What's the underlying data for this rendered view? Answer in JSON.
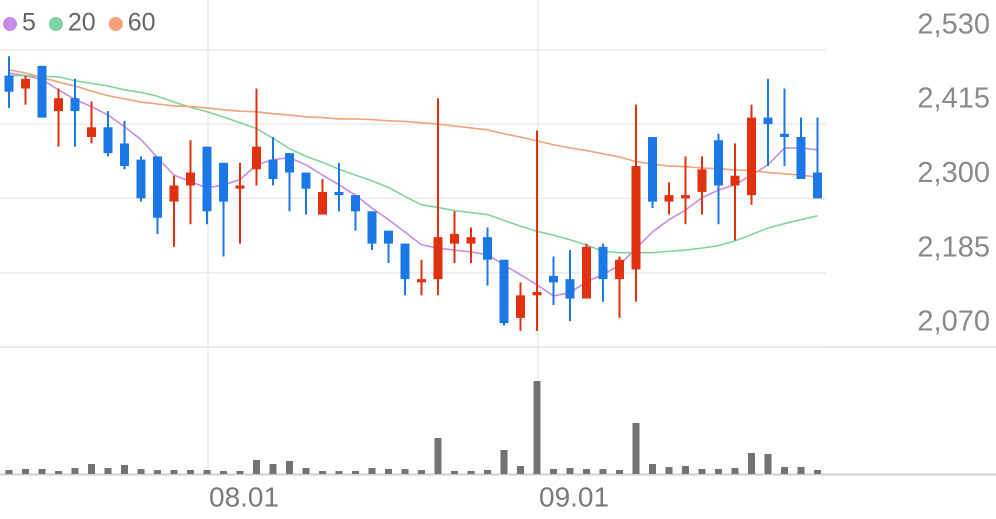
{
  "chart_data": {
    "type": "candlestick",
    "categories": [
      null,
      null,
      null,
      null,
      null,
      null,
      null,
      null,
      null,
      null,
      null,
      null,
      "08.01",
      null,
      null,
      null,
      null,
      null,
      null,
      null,
      null,
      null,
      null,
      null,
      null,
      null,
      null,
      null,
      null,
      null,
      null,
      null,
      "09.01",
      null,
      null,
      null,
      null,
      null,
      null,
      null,
      null,
      null,
      null,
      null,
      null,
      null,
      null,
      null,
      null,
      null
    ],
    "open": [
      2490,
      2470,
      2505,
      2435,
      2455,
      2395,
      2410,
      2385,
      2360,
      2365,
      2295,
      2320,
      2380,
      2355,
      2315,
      2345,
      2360,
      2370,
      2340,
      2275,
      2310,
      2305,
      2280,
      2250,
      2230,
      2170,
      2175,
      2230,
      2230,
      2240,
      2205,
      2115,
      2150,
      2180,
      2175,
      2145,
      2225,
      2175,
      2190,
      2395,
      2295,
      2300,
      2310,
      2390,
      2320,
      2305,
      2425,
      2400,
      2395,
      2340
    ],
    "high": [
      2520,
      2490,
      2505,
      2470,
      2485,
      2450,
      2435,
      2420,
      2365,
      2365,
      2335,
      2390,
      2380,
      2355,
      2355,
      2470,
      2395,
      2370,
      2340,
      2330,
      2355,
      2305,
      2280,
      2250,
      2230,
      2205,
      2455,
      2280,
      2255,
      2255,
      2205,
      2170,
      2405,
      2210,
      2220,
      2230,
      2230,
      2210,
      2445,
      2395,
      2325,
      2365,
      2365,
      2400,
      2385,
      2445,
      2485,
      2470,
      2425,
      2425
    ],
    "low": [
      2440,
      2445,
      2425,
      2380,
      2380,
      2385,
      2365,
      2345,
      2295,
      2245,
      2225,
      2260,
      2260,
      2210,
      2230,
      2320,
      2320,
      2280,
      2275,
      2275,
      2280,
      2250,
      2220,
      2200,
      2150,
      2150,
      2150,
      2200,
      2200,
      2165,
      2103,
      2095,
      2095,
      2135,
      2110,
      2145,
      2140,
      2115,
      2140,
      2285,
      2275,
      2260,
      2275,
      2260,
      2235,
      2290,
      2350,
      2350,
      2330,
      2300
    ],
    "close": [
      2465,
      2485,
      2425,
      2455,
      2435,
      2410,
      2370,
      2350,
      2300,
      2270,
      2320,
      2340,
      2280,
      2295,
      2320,
      2380,
      2330,
      2340,
      2315,
      2310,
      2305,
      2280,
      2230,
      2230,
      2175,
      2175,
      2240,
      2245,
      2240,
      2205,
      2107,
      2150,
      2155,
      2170,
      2145,
      2225,
      2175,
      2205,
      2350,
      2295,
      2305,
      2305,
      2345,
      2320,
      2335,
      2425,
      2415,
      2395,
      2330,
      2300
    ],
    "up_color": "#e0320f",
    "down_color": "#1c78e5",
    "series": [
      {
        "name": "5",
        "color": "#c98be3",
        "values": [
          2494,
          2490,
          2484,
          2468,
          2453,
          2442,
          2429,
          2411,
          2391,
          2363,
          2336,
          2326,
          2316,
          2321,
          2329,
          2352,
          2360,
          2363,
          2352,
          2336,
          2321,
          2305,
          2285,
          2267,
          2248,
          2228,
          2223,
          2220,
          2217,
          2213,
          2197,
          2182,
          2166,
          2149,
          2154,
          2171,
          2182,
          2197,
          2223,
          2248,
          2267,
          2282,
          2301,
          2313,
          2321,
          2336,
          2352,
          2378,
          2378,
          2375
        ]
      },
      {
        "name": "20",
        "color": "#7fd69d",
        "values": [
          2490,
          2490,
          2489,
          2488,
          2482,
          2478,
          2474,
          2468,
          2464,
          2458,
          2449,
          2441,
          2434,
          2426,
          2417,
          2408,
          2393,
          2377,
          2365,
          2356,
          2345,
          2336,
          2327,
          2317,
          2303,
          2290,
          2286,
          2281,
          2278,
          2275,
          2266,
          2257,
          2249,
          2243,
          2236,
          2228,
          2218,
          2216,
          2216,
          2216,
          2218,
          2220,
          2223,
          2227,
          2234,
          2244,
          2254,
          2261,
          2267,
          2273
        ]
      },
      {
        "name": "60",
        "color": "#f2a17c",
        "values": [
          2499,
          2494,
          2487,
          2480,
          2474,
          2466,
          2459,
          2454,
          2449,
          2446,
          2443,
          2442,
          2440,
          2437,
          2435,
          2434,
          2431,
          2429,
          2426,
          2425,
          2423,
          2423,
          2422,
          2420,
          2419,
          2417,
          2415,
          2412,
          2409,
          2406,
          2400,
          2395,
          2389,
          2383,
          2378,
          2374,
          2369,
          2364,
          2357,
          2353,
          2350,
          2349,
          2347,
          2346,
          2344,
          2343,
          2340,
          2338,
          2336,
          2333
        ]
      }
    ],
    "volume": [
      4,
      5,
      5,
      3,
      6,
      10,
      6,
      9,
      5,
      4,
      4,
      4,
      4,
      3,
      3,
      14,
      10,
      13,
      6,
      3,
      3,
      3,
      6,
      5,
      5,
      4,
      36,
      3,
      3,
      4,
      24,
      8,
      93,
      5,
      6,
      5,
      5,
      4,
      51,
      10,
      7,
      8,
      5,
      5,
      6,
      21,
      20,
      7,
      7,
      4
    ],
    "volume_color": "#737373",
    "ylim": [
      2070,
      2607
    ],
    "yticks": [
      {
        "value": 2070,
        "label": "2,070"
      },
      {
        "value": 2185,
        "label": "2,185"
      },
      {
        "value": 2300,
        "label": "2,300"
      },
      {
        "value": 2415,
        "label": "2,415"
      },
      {
        "value": 2530,
        "label": "2,530"
      }
    ],
    "vlim": [
      0,
      100
    ],
    "grid": true
  }
}
